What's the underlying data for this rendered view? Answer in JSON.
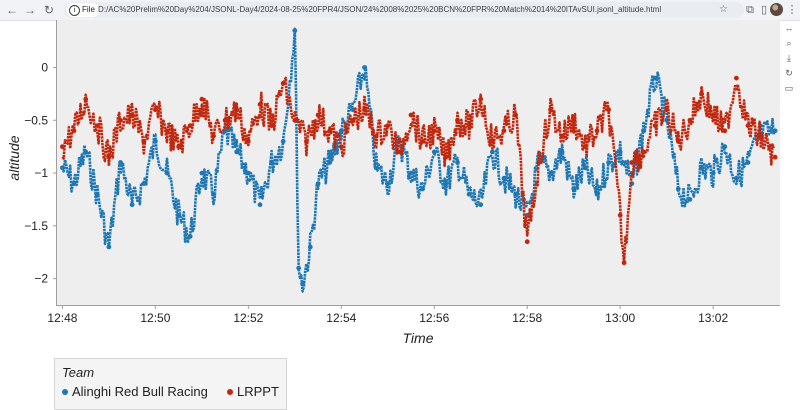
{
  "browser": {
    "file_label": "File",
    "url": "D:/AC%20Prelim%20Day%204/JSONL-Day4/2024-08-25%20FPR4/JSON/24%2008%2025%20BCN%20FPR%20Match%2014%20ITAvSUI.jsonl_altitude.html",
    "icons": [
      "back-arrow-icon",
      "forward-arrow-icon",
      "reload-icon",
      "info-icon",
      "star-icon",
      "extensions-icon",
      "sidepanel-icon",
      "profile-avatar",
      "menu-icon"
    ]
  },
  "toolbar": {
    "tools": [
      "pan-icon",
      "box-zoom-icon",
      "save-icon",
      "reset-icon",
      "hover-icon"
    ]
  },
  "chart_data": {
    "type": "scatter",
    "xlabel": "Time",
    "ylabel": "altitude",
    "x_is_time": true,
    "xlim": [
      "12:47:53",
      "13:03:25"
    ],
    "ylim": [
      -2.25,
      0.45
    ],
    "xticks": [
      "12:48",
      "12:50",
      "12:52",
      "12:54",
      "12:56",
      "12:58",
      "13:00",
      "13:02"
    ],
    "yticks": [
      0,
      -0.5,
      -1,
      -1.5,
      -2
    ],
    "ytick_labels": [
      "0",
      "−0.5",
      "−1",
      "−1.5",
      "−2"
    ],
    "grid": false,
    "legend": {
      "title": "Team",
      "placement": "bottom-left, outside"
    },
    "series": [
      {
        "name": "Alinghi Red Bull Racing",
        "color": "#1f77b4",
        "x": [
          "12:48:00",
          "12:48:15",
          "12:48:30",
          "12:48:45",
          "12:49:00",
          "12:49:15",
          "12:49:30",
          "12:49:45",
          "12:50:00",
          "12:50:15",
          "12:50:30",
          "12:50:45",
          "12:51:00",
          "12:51:15",
          "12:51:30",
          "12:51:45",
          "12:52:00",
          "12:52:15",
          "12:52:30",
          "12:52:45",
          "12:53:00",
          "12:53:05",
          "12:53:10",
          "12:53:20",
          "12:53:30",
          "12:53:45",
          "12:54:00",
          "12:54:15",
          "12:54:30",
          "12:54:45",
          "12:55:00",
          "12:55:15",
          "12:55:30",
          "12:55:45",
          "12:56:00",
          "12:56:15",
          "12:56:30",
          "12:56:45",
          "12:57:00",
          "12:57:15",
          "12:57:30",
          "12:57:45",
          "12:58:00",
          "12:58:15",
          "12:58:30",
          "12:58:45",
          "12:59:00",
          "12:59:15",
          "12:59:30",
          "12:59:45",
          "13:00:00",
          "13:00:15",
          "13:00:30",
          "13:00:45",
          "13:01:00",
          "13:01:15",
          "13:01:30",
          "13:01:45",
          "13:02:00",
          "13:02:15",
          "13:02:30",
          "13:02:45",
          "13:03:00",
          "13:03:20"
        ],
        "y": [
          -0.95,
          -1.1,
          -0.8,
          -1.2,
          -1.7,
          -0.9,
          -1.3,
          -1.1,
          -0.7,
          -1.0,
          -1.4,
          -1.6,
          -1.0,
          -1.2,
          -0.6,
          -0.8,
          -1.0,
          -1.3,
          -0.9,
          -0.7,
          0.35,
          -1.9,
          -2.05,
          -1.7,
          -1.1,
          -0.9,
          -0.6,
          -0.4,
          0.0,
          -0.95,
          -1.1,
          -0.7,
          -1.0,
          -1.15,
          -0.8,
          -1.1,
          -0.9,
          -1.2,
          -1.3,
          -0.8,
          -1.05,
          -1.2,
          -1.4,
          -0.9,
          -1.0,
          -0.8,
          -1.15,
          -0.95,
          -1.2,
          -0.9,
          -0.8,
          -1.1,
          -0.6,
          -0.1,
          -0.5,
          -1.15,
          -1.25,
          -0.95,
          -1.0,
          -0.75,
          -1.05,
          -0.9,
          -0.65,
          -0.6
        ]
      },
      {
        "name": "LRPPT",
        "color": "#c0280f",
        "x": [
          "12:48:00",
          "12:48:15",
          "12:48:30",
          "12:48:45",
          "12:49:00",
          "12:49:15",
          "12:49:30",
          "12:49:45",
          "12:50:00",
          "12:50:15",
          "12:50:30",
          "12:50:45",
          "12:51:00",
          "12:51:15",
          "12:51:30",
          "12:51:45",
          "12:52:00",
          "12:52:15",
          "12:52:30",
          "12:52:45",
          "12:53:00",
          "12:53:15",
          "12:53:30",
          "12:53:45",
          "12:54:00",
          "12:54:15",
          "12:54:30",
          "12:54:45",
          "12:55:00",
          "12:55:15",
          "12:55:30",
          "12:55:45",
          "12:56:00",
          "12:56:15",
          "12:56:30",
          "12:56:45",
          "12:57:00",
          "12:57:15",
          "12:57:30",
          "12:57:45",
          "12:58:00",
          "12:58:15",
          "12:58:30",
          "12:58:45",
          "12:59:00",
          "12:59:15",
          "12:59:30",
          "12:59:45",
          "13:00:00",
          "13:00:05",
          "13:00:15",
          "13:00:30",
          "13:00:45",
          "13:01:00",
          "13:01:15",
          "13:01:30",
          "13:01:45",
          "13:02:00",
          "13:02:15",
          "13:02:30",
          "13:02:45",
          "13:03:00",
          "13:03:20"
        ],
        "y": [
          -0.75,
          -0.6,
          -0.3,
          -0.55,
          -0.85,
          -0.5,
          -0.45,
          -0.7,
          -0.4,
          -0.6,
          -0.75,
          -0.55,
          -0.3,
          -0.65,
          -0.5,
          -0.4,
          -0.7,
          -0.35,
          -0.55,
          -0.15,
          -0.5,
          -0.7,
          -0.45,
          -0.6,
          -0.75,
          -0.5,
          -0.4,
          -0.65,
          -0.55,
          -0.8,
          -0.45,
          -0.7,
          -0.6,
          -0.85,
          -0.5,
          -0.55,
          -0.3,
          -0.7,
          -0.6,
          -0.45,
          -1.65,
          -0.9,
          -0.4,
          -0.65,
          -0.5,
          -0.75,
          -0.6,
          -0.4,
          -1.4,
          -1.85,
          -0.9,
          -0.8,
          -0.55,
          -0.4,
          -0.7,
          -0.5,
          -0.25,
          -0.45,
          -0.6,
          -0.1,
          -0.55,
          -0.65,
          -0.85
        ]
      }
    ]
  }
}
